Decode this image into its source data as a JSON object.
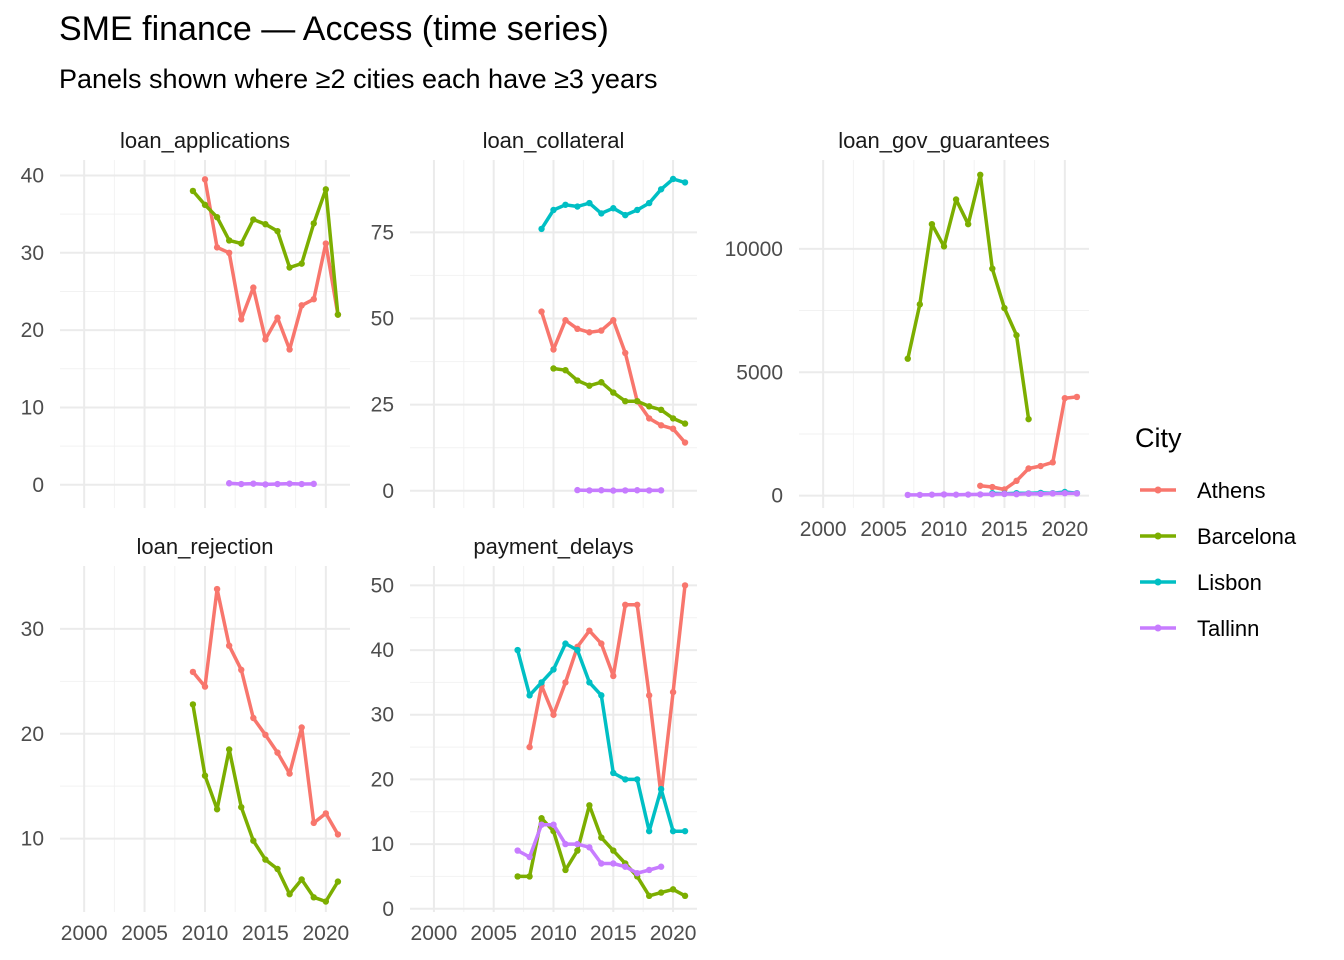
{
  "title": "SME finance — Access (time series)",
  "subtitle": "Panels shown where ≥2 cities each have ≥3 years",
  "legend": {
    "title": "City",
    "items": [
      {
        "name": "Athens",
        "color": "#F8766D"
      },
      {
        "name": "Barcelona",
        "color": "#7CAE00"
      },
      {
        "name": "Lisbon",
        "color": "#00BFC4"
      },
      {
        "name": "Tallinn",
        "color": "#C77CFF"
      }
    ]
  },
  "chart_data": [
    {
      "type": "line",
      "panel": "loan_applications",
      "xlim": [
        1998,
        2022
      ],
      "ylim": [
        -3,
        42
      ],
      "x_ticks": [
        2000,
        2005,
        2010,
        2015,
        2020
      ],
      "y_ticks": [
        0,
        10,
        20,
        30,
        40
      ],
      "series": [
        {
          "name": "Athens",
          "x": [
            2010,
            2011,
            2012,
            2013,
            2014,
            2015,
            2016,
            2017,
            2018,
            2019,
            2020,
            2021
          ],
          "y": [
            39.5,
            30.7,
            30.0,
            21.4,
            25.5,
            18.8,
            21.6,
            17.5,
            23.2,
            24.0,
            31.2,
            22.0
          ]
        },
        {
          "name": "Barcelona",
          "x": [
            2009,
            2010,
            2011,
            2012,
            2013,
            2014,
            2015,
            2016,
            2017,
            2018,
            2019,
            2020,
            2021
          ],
          "y": [
            38.0,
            36.2,
            34.6,
            31.6,
            31.2,
            34.3,
            33.7,
            32.8,
            28.1,
            28.6,
            33.8,
            38.2,
            22.0
          ]
        },
        {
          "name": "Tallinn",
          "x": [
            2012,
            2013,
            2014,
            2015,
            2016,
            2017,
            2018,
            2019
          ],
          "y": [
            0.2,
            0.1,
            0.15,
            0.05,
            0.1,
            0.15,
            0.1,
            0.12
          ]
        }
      ]
    },
    {
      "type": "line",
      "panel": "loan_collateral",
      "xlim": [
        1998,
        2022
      ],
      "ylim": [
        -5,
        96
      ],
      "x_ticks": [
        2000,
        2005,
        2010,
        2015,
        2020
      ],
      "y_ticks": [
        0,
        25,
        50,
        75
      ],
      "series": [
        {
          "name": "Athens",
          "x": [
            2009,
            2010,
            2011,
            2012,
            2013,
            2014,
            2015,
            2016,
            2017,
            2018,
            2019,
            2020,
            2021
          ],
          "y": [
            52.0,
            41.0,
            49.5,
            47.0,
            46.0,
            46.5,
            49.5,
            40.0,
            26.0,
            21.0,
            19.0,
            18.0,
            14.0
          ]
        },
        {
          "name": "Barcelona",
          "x": [
            2010,
            2011,
            2012,
            2013,
            2014,
            2015,
            2016,
            2017,
            2018,
            2019,
            2020,
            2021
          ],
          "y": [
            35.5,
            35.0,
            32.0,
            30.5,
            31.5,
            28.5,
            26.0,
            26.0,
            24.5,
            23.5,
            21.0,
            19.5
          ]
        },
        {
          "name": "Lisbon",
          "x": [
            2009,
            2010,
            2011,
            2012,
            2013,
            2014,
            2015,
            2016,
            2017,
            2018,
            2019,
            2020,
            2021
          ],
          "y": [
            76.0,
            81.5,
            83.0,
            82.5,
            83.5,
            80.5,
            82.0,
            80.0,
            81.5,
            83.5,
            87.5,
            90.5,
            89.5
          ]
        },
        {
          "name": "Tallinn",
          "x": [
            2012,
            2013,
            2014,
            2015,
            2016,
            2017,
            2018,
            2019
          ],
          "y": [
            0.2,
            0.1,
            0.15,
            0.05,
            0.1,
            0.15,
            0.1,
            0.12
          ]
        }
      ]
    },
    {
      "type": "line",
      "panel": "loan_gov_guarantees",
      "xlim": [
        1998,
        2022
      ],
      "ylim": [
        -500,
        13600
      ],
      "x_ticks": [
        2000,
        2005,
        2010,
        2015,
        2020
      ],
      "y_ticks": [
        0,
        5000,
        10000
      ],
      "series": [
        {
          "name": "Athens",
          "x": [
            2013,
            2014,
            2015,
            2016,
            2017,
            2018,
            2019,
            2020,
            2021
          ],
          "y": [
            400,
            350,
            250,
            600,
            1100,
            1200,
            1350,
            3950,
            4000
          ]
        },
        {
          "name": "Barcelona",
          "x": [
            2007,
            2008,
            2009,
            2010,
            2011,
            2012,
            2013,
            2014,
            2015,
            2016,
            2017
          ],
          "y": [
            5550,
            7750,
            11000,
            10100,
            12000,
            11000,
            13000,
            9200,
            7600,
            6500,
            3100
          ]
        },
        {
          "name": "Lisbon",
          "x": [
            2014,
            2015,
            2016,
            2017,
            2018,
            2019,
            2020,
            2021
          ],
          "y": [
            100,
            80,
            100,
            90,
            110,
            100,
            150,
            100
          ]
        },
        {
          "name": "Tallinn",
          "x": [
            2007,
            2008,
            2009,
            2010,
            2011,
            2012,
            2013,
            2014,
            2015,
            2016,
            2017,
            2018,
            2019,
            2020,
            2021
          ],
          "y": [
            30,
            30,
            40,
            50,
            40,
            45,
            50,
            60,
            70,
            60,
            80,
            70,
            90,
            100,
            90
          ]
        }
      ]
    },
    {
      "type": "line",
      "panel": "loan_rejection",
      "xlim": [
        1998,
        2022
      ],
      "ylim": [
        3,
        36
      ],
      "x_ticks": [
        2000,
        2005,
        2010,
        2015,
        2020
      ],
      "y_ticks": [
        10,
        20,
        30
      ],
      "series": [
        {
          "name": "Athens",
          "x": [
            2009,
            2010,
            2011,
            2012,
            2013,
            2014,
            2015,
            2016,
            2017,
            2018,
            2019,
            2020,
            2021
          ],
          "y": [
            25.9,
            24.5,
            33.8,
            28.4,
            26.1,
            21.5,
            19.9,
            18.2,
            16.2,
            20.6,
            11.5,
            12.4,
            10.4
          ]
        },
        {
          "name": "Barcelona",
          "x": [
            2009,
            2010,
            2011,
            2012,
            2013,
            2014,
            2015,
            2016,
            2017,
            2018,
            2019,
            2020,
            2021
          ],
          "y": [
            22.8,
            16.0,
            12.8,
            18.5,
            13.0,
            9.8,
            8.0,
            7.1,
            4.7,
            6.1,
            4.4,
            4.0,
            5.9
          ]
        }
      ]
    },
    {
      "type": "line",
      "panel": "payment_delays",
      "xlim": [
        1998,
        2022
      ],
      "ylim": [
        -0.5,
        53
      ],
      "x_ticks": [
        2000,
        2005,
        2010,
        2015,
        2020
      ],
      "y_ticks": [
        0,
        10,
        20,
        30,
        40,
        50
      ],
      "series": [
        {
          "name": "Athens",
          "x": [
            2008,
            2009,
            2010,
            2011,
            2012,
            2013,
            2014,
            2015,
            2016,
            2017,
            2018,
            2019,
            2020,
            2021
          ],
          "y": [
            25,
            34.5,
            30,
            35,
            40.5,
            43,
            41,
            36,
            47,
            47,
            33,
            17.5,
            33.5,
            50
          ]
        },
        {
          "name": "Barcelona",
          "x": [
            2007,
            2008,
            2009,
            2010,
            2011,
            2012,
            2013,
            2014,
            2015,
            2016,
            2017,
            2018,
            2019,
            2020,
            2021
          ],
          "y": [
            5,
            5,
            14,
            12,
            6,
            9,
            16,
            11,
            9,
            7,
            5,
            2,
            2.5,
            3,
            2
          ]
        },
        {
          "name": "Lisbon",
          "x": [
            2007,
            2008,
            2009,
            2010,
            2011,
            2012,
            2013,
            2014,
            2015,
            2016,
            2017,
            2018,
            2019,
            2020,
            2021
          ],
          "y": [
            40,
            33,
            35,
            37,
            41,
            40,
            35,
            33,
            21,
            20,
            20,
            12,
            18.5,
            12,
            12
          ]
        },
        {
          "name": "Tallinn",
          "x": [
            2007,
            2008,
            2009,
            2010,
            2011,
            2012,
            2013,
            2014,
            2015,
            2016,
            2017,
            2018,
            2019
          ],
          "y": [
            9,
            8,
            13,
            13,
            10,
            10,
            9.5,
            7,
            7,
            6.5,
            5.5,
            6,
            6.5
          ]
        }
      ]
    }
  ]
}
